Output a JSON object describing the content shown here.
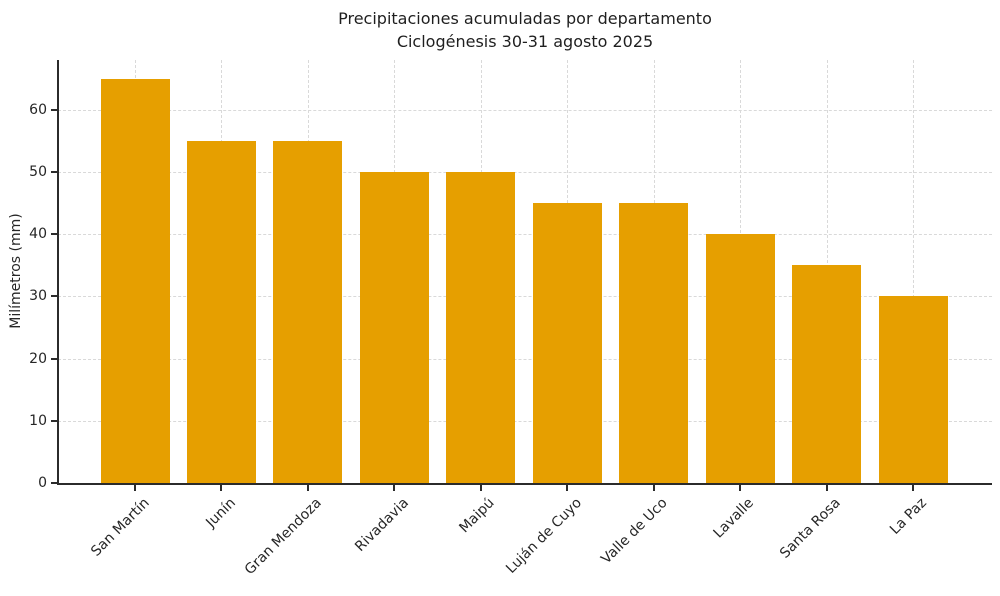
{
  "chart": {
    "title_line1": "Precipitaciones acumuladas por departamento",
    "title_line2": "Ciclogénesis 30-31 agosto 2025",
    "ylabel": "Milímetros (mm)"
  },
  "chart_data": {
    "type": "bar",
    "title": "Precipitaciones acumuladas por departamento — Ciclogénesis 30-31 agosto 2025",
    "xlabel": "",
    "ylabel": "Milímetros (mm)",
    "categories": [
      "San Martín",
      "Junín",
      "Gran Mendoza",
      "Rivadavia",
      "Maipú",
      "Luján de Cuyo",
      "Valle de Uco",
      "Lavalle",
      "Santa Rosa",
      "La Paz"
    ],
    "values": [
      65,
      55,
      55,
      50,
      50,
      45,
      45,
      40,
      35,
      30
    ],
    "ylim": [
      0,
      68
    ],
    "yticks": [
      0,
      10,
      20,
      30,
      40,
      50,
      60
    ],
    "grid": true,
    "legend": "none",
    "bar_color": "#E69F00",
    "grid_color": "#d9d9d9",
    "axis_color": "#2b2b2b",
    "text_color": "#262626"
  }
}
